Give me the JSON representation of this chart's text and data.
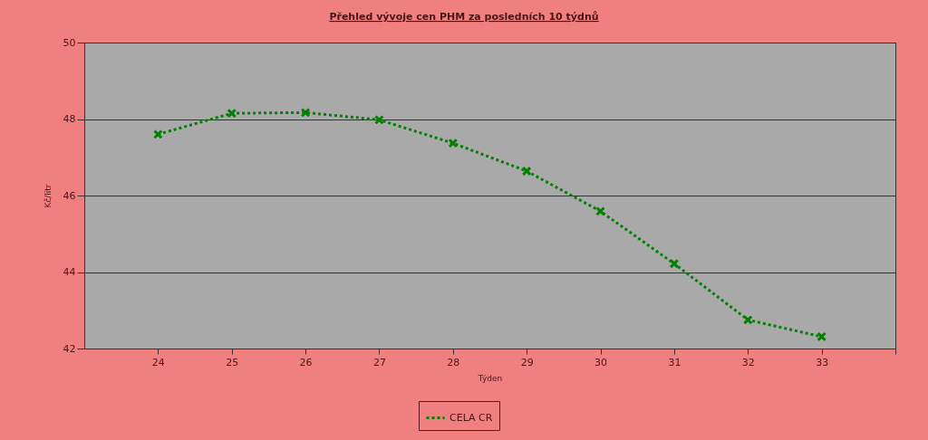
{
  "chart_data": {
    "type": "line",
    "title": "Přehled vývoje cen PHM za posledních 10 týdnů",
    "xlabel": "Týden",
    "ylabel": "Kč/litr",
    "x": [
      24,
      25,
      26,
      27,
      28,
      29,
      30,
      31,
      32,
      33
    ],
    "series": [
      {
        "name": "CELA CR",
        "color": "#008000",
        "values": [
          47.6,
          48.15,
          48.17,
          47.98,
          47.37,
          46.64,
          45.59,
          44.22,
          42.75,
          42.31
        ]
      }
    ],
    "xlim": [
      23,
      34
    ],
    "xticks": [
      24,
      25,
      26,
      27,
      28,
      29,
      30,
      31,
      32,
      33,
      {
        "value": 34,
        "label": null
      }
    ],
    "ylim": [
      42,
      50
    ],
    "yticks": [
      42,
      44,
      46,
      48,
      50
    ],
    "grid": "y",
    "legend": "bottom",
    "marker": "cross",
    "line_style": "dotted"
  }
}
